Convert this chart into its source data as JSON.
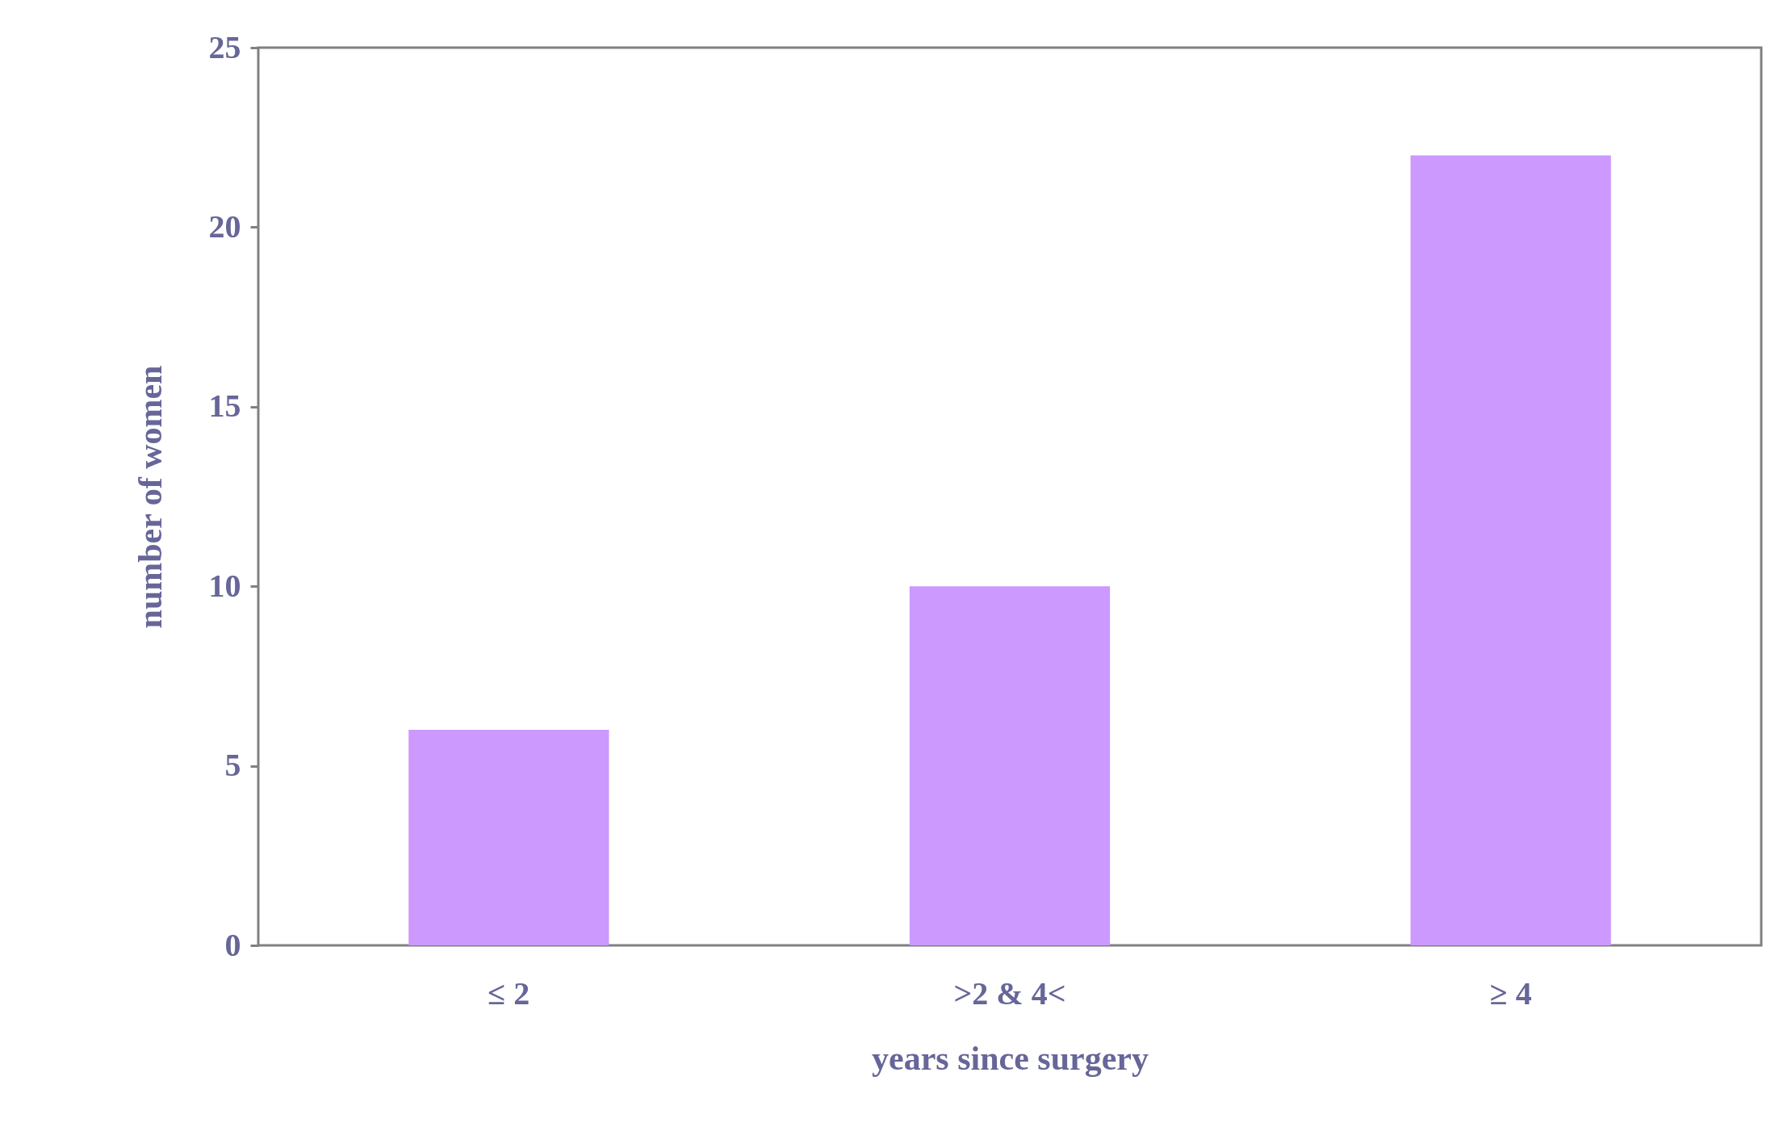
{
  "chart_data": {
    "type": "bar",
    "xlabel": "years since surgery",
    "ylabel": "number of women",
    "categories": [
      "≤ 2",
      ">2 & 4<",
      "≥ 4"
    ],
    "values": [
      6,
      10,
      22
    ],
    "color": "#cc99ff",
    "ylim": [
      0,
      25
    ],
    "yticks": [
      0,
      5,
      10,
      15,
      20,
      25
    ],
    "grid": false
  }
}
